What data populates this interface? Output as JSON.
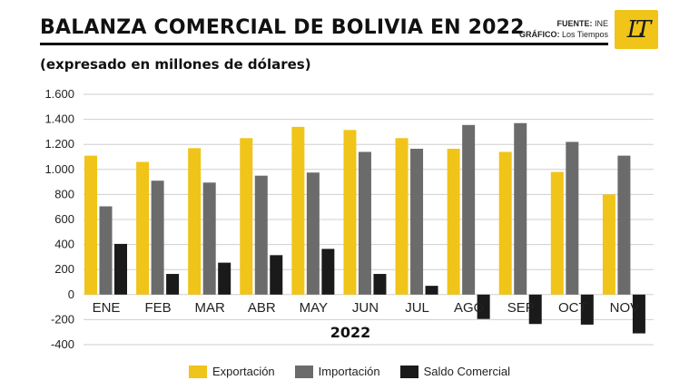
{
  "header": {
    "title": "BALANZA COMERCIAL DE BOLIVIA EN 2022",
    "subtitle": "(expresado en millones de dólares)",
    "source_label": "FUENTE:",
    "source_value": "INE",
    "graphic_label": "GRÁFICO:",
    "graphic_value": "Los Tiempos",
    "logo_text": "LT"
  },
  "colors": {
    "exportacion": "#f0c419",
    "importacion": "#6b6b6b",
    "saldo": "#1a1a1a",
    "grid": "#cfcfcf"
  },
  "chart_data": {
    "type": "bar",
    "title": "BALANZA COMERCIAL DE BOLIVIA EN 2022",
    "subtitle": "(expresado en millones de dólares)",
    "xlabel": "2022",
    "ylabel": "",
    "categories": [
      "ENE",
      "FEB",
      "MAR",
      "ABR",
      "MAY",
      "JUN",
      "JUL",
      "AGO",
      "SEP",
      "OCT",
      "NOV"
    ],
    "series": [
      {
        "name": "Exportación",
        "values": [
          1110,
          1060,
          1170,
          1250,
          1340,
          1315,
          1250,
          1165,
          1140,
          980,
          800
        ]
      },
      {
        "name": "Importación",
        "values": [
          705,
          910,
          895,
          950,
          975,
          1140,
          1165,
          1355,
          1370,
          1220,
          1110
        ]
      },
      {
        "name": "Saldo Comercial",
        "values": [
          405,
          165,
          255,
          315,
          365,
          165,
          70,
          -195,
          -235,
          -240,
          -310
        ]
      }
    ],
    "ylim": [
      -400,
      1600
    ],
    "yticks": [
      -400,
      -200,
      0,
      200,
      400,
      600,
      800,
      1000,
      1200,
      1400,
      1600
    ],
    "ytick_labels": [
      "-400",
      "-200",
      "0",
      "200",
      "400",
      "600",
      "800",
      "1.000",
      "1.200",
      "1.400",
      "1.600"
    ],
    "grid": true,
    "legend_position": "bottom-center"
  }
}
